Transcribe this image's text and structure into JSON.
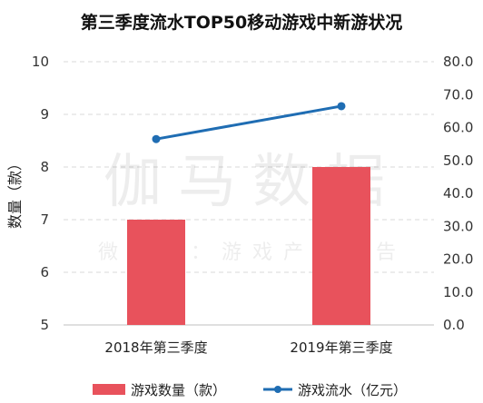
{
  "chart_data": {
    "type": "bar+line",
    "title": "第三季度流水TOP50移动游戏中新游状况",
    "categories": [
      "2018年第三季度",
      "2019年第三季度"
    ],
    "series": [
      {
        "name": "游戏数量（款）",
        "type": "bar",
        "axis": "left",
        "values": [
          7,
          8
        ],
        "color": "#e8525c"
      },
      {
        "name": "游戏流水（亿元）",
        "type": "line",
        "axis": "right",
        "values": [
          56.5,
          66.5
        ],
        "color": "#1f6db3"
      }
    ],
    "ylabel": "数量（款）",
    "ylim_left": [
      5,
      10
    ],
    "yticks_left": [
      "5",
      "6",
      "7",
      "8",
      "9",
      "10"
    ],
    "ylim_right": [
      0,
      80
    ],
    "yticks_right": [
      "0.0",
      "10.0",
      "20.0",
      "30.0",
      "40.0",
      "50.0",
      "60.0",
      "70.0",
      "80.0"
    ],
    "grid": true,
    "legend": "bottom"
  },
  "watermark": {
    "main": "伽马数据",
    "sub": "微信号：游戏产业报告"
  }
}
